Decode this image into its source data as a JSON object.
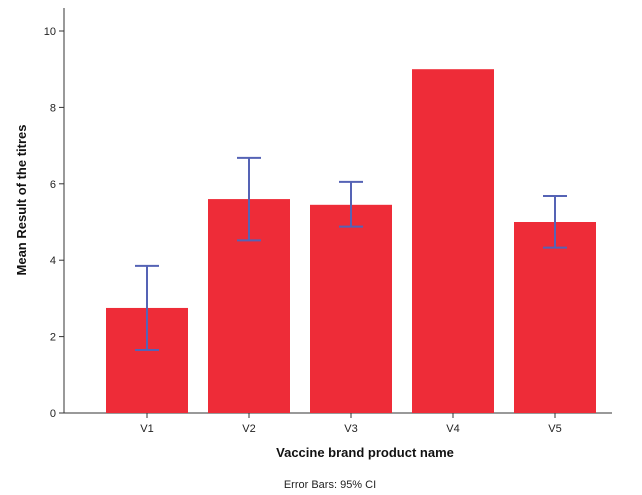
{
  "chart_data": {
    "type": "bar",
    "categories": [
      "V1",
      "V2",
      "V3",
      "V4",
      "V5"
    ],
    "values": [
      2.75,
      5.6,
      5.45,
      9.0,
      5.0
    ],
    "error_bars": [
      {
        "low": 1.65,
        "high": 3.85
      },
      {
        "low": 4.52,
        "high": 6.68
      },
      {
        "low": 4.88,
        "high": 6.05
      },
      null,
      {
        "low": 4.33,
        "high": 5.68
      }
    ],
    "title": "",
    "xlabel": "Vaccine brand product name",
    "ylabel": "Mean Result of the titres",
    "ylim": [
      0,
      10.6
    ],
    "yticks": [
      0,
      2,
      4,
      6,
      8,
      10
    ],
    "grid": false,
    "footnote": "Error Bars: 95% CI",
    "colors": {
      "bar": "#ee2c38",
      "error_bar": "#5563b5",
      "axis": "#333333"
    }
  }
}
